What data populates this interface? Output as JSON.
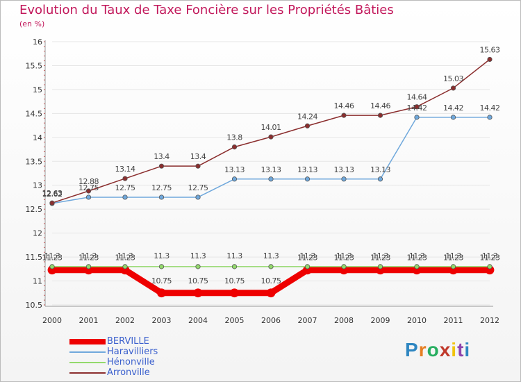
{
  "title": "Evolution du Taux de Taxe Foncière sur les Propriétés Bâties",
  "subtitle": "(en %)",
  "brand": {
    "letters": [
      "P",
      "r",
      "o",
      "x",
      "i",
      "t",
      "i"
    ],
    "colors": [
      "#2e86c1",
      "#e67e22",
      "#27ae60",
      "#c0392b",
      "#f1c40f",
      "#8e44ad",
      "#2e86c1"
    ]
  },
  "chart_data": {
    "type": "line",
    "title": "Evolution du Taux de Taxe Foncière sur les Propriétés Bâties",
    "ylabel": "(en %)",
    "xlabel": "",
    "ylim": [
      10.5,
      16
    ],
    "yticks": [
      10.5,
      11,
      11.5,
      12,
      12.5,
      13,
      13.5,
      14,
      14.5,
      15,
      15.5,
      16
    ],
    "ytick_labels": [
      "10.5",
      "11",
      "11.5",
      "12",
      "12.5",
      "13",
      "13.5",
      "14",
      "14.5",
      "15",
      "15.5",
      "16"
    ],
    "x": [
      "2000",
      "2001",
      "2002",
      "2003",
      "2004",
      "2005",
      "2006",
      "2007",
      "2008",
      "2009",
      "2010",
      "2011",
      "2012"
    ],
    "grid": true,
    "legend": "bottom-left",
    "series": [
      {
        "name": "BERVILLE",
        "color": "#ee0000",
        "values": [
          11.23,
          11.23,
          11.23,
          10.75,
          10.75,
          10.75,
          10.75,
          11.23,
          11.23,
          11.23,
          11.23,
          11.23,
          11.23
        ],
        "labels": [
          "11.23",
          "11.23",
          "11.23",
          "10.75",
          "10.75",
          "10.75",
          "10.75",
          "11.23",
          "11.23",
          "11.23",
          "11.23",
          "11.23",
          "11.23"
        ]
      },
      {
        "name": "Haravilliers",
        "color": "#6fa8dc",
        "values": [
          12.62,
          12.75,
          12.75,
          12.75,
          12.75,
          13.13,
          13.13,
          13.13,
          13.13,
          13.13,
          14.42,
          14.42,
          14.42
        ],
        "labels": [
          "12.62",
          "12.75",
          "12.75",
          "12.75",
          "12.75",
          "13.13",
          "13.13",
          "13.13",
          "13.13",
          "13.13",
          "14.42",
          "14.42",
          "14.42"
        ]
      },
      {
        "name": "Hénonville",
        "color": "#93d96c",
        "values": [
          11.3,
          11.3,
          11.3,
          11.3,
          11.3,
          11.3,
          11.3,
          11.3,
          11.3,
          11.3,
          11.3,
          11.3,
          11.3
        ],
        "labels": [
          "11.3",
          "11.3",
          "11.3",
          "11.3",
          "11.3",
          "11.3",
          "11.3",
          "11.3",
          "11.3",
          "11.3",
          "11.3",
          "11.3",
          "11.3"
        ]
      },
      {
        "name": "Arronville",
        "color": "#8b2e2e",
        "values": [
          12.63,
          12.88,
          13.14,
          13.4,
          13.4,
          13.8,
          14.01,
          14.24,
          14.46,
          14.46,
          14.64,
          15.03,
          15.63
        ],
        "labels": [
          "12.63",
          "12.88",
          "13.14",
          "13.4",
          "13.4",
          "13.8",
          "14.01",
          "14.24",
          "14.46",
          "14.46",
          "14.64",
          "15.03",
          "15.63"
        ]
      }
    ]
  }
}
